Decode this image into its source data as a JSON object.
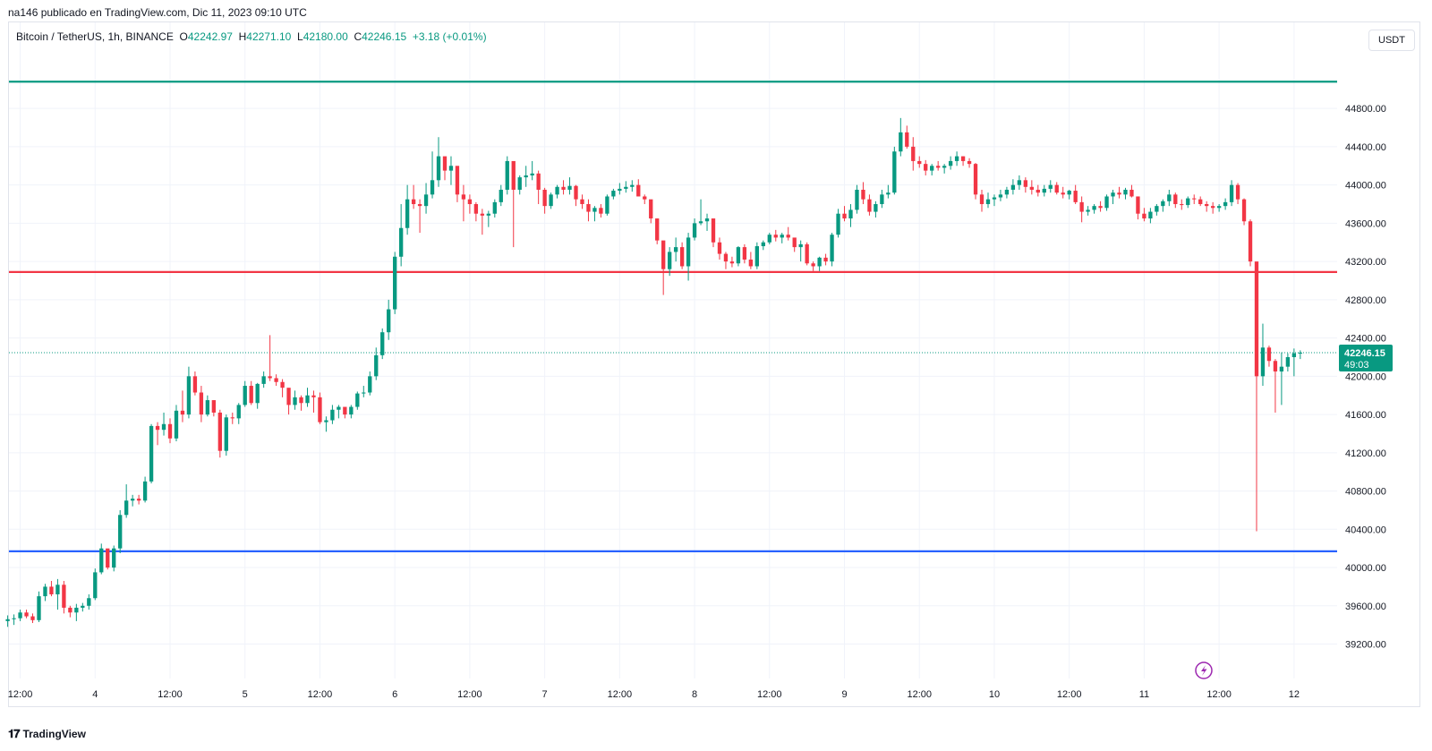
{
  "header": {
    "publisher": "na146 publicado en TradingView.com, Dic 11, 2023 09:10 UTC"
  },
  "legend": {
    "symbol": "Bitcoin / TetherUS, 1h, BINANCE",
    "o_label": "O",
    "o_value": "42242.97",
    "h_label": "H",
    "h_value": "42271.10",
    "l_label": "L",
    "l_value": "42180.00",
    "c_label": "C",
    "c_value": "42246.15",
    "change": "+3.18 (+0.01%)"
  },
  "price_axis": {
    "unit": "USDT",
    "current_price": "42246.15",
    "countdown": "49:03"
  },
  "brand": {
    "name": "TradingView"
  },
  "colors": {
    "up": "#089981",
    "down": "#f23645",
    "level_top": "#089981",
    "level_mid": "#f23645",
    "level_low": "#2962ff"
  },
  "chart_data": {
    "type": "candlestick",
    "y_ticks": [
      "44800.00",
      "44400.00",
      "44000.00",
      "43600.00",
      "43200.00",
      "42800.00",
      "42400.00",
      "42000.00",
      "41600.00",
      "41200.00",
      "40800.00",
      "40400.00",
      "40000.00",
      "39600.00",
      "39200.00"
    ],
    "x_ticks": [
      "12:00",
      "4",
      "12:00",
      "5",
      "12:00",
      "6",
      "12:00",
      "7",
      "12:00",
      "8",
      "12:00",
      "9",
      "12:00",
      "10",
      "12:00",
      "11",
      "12:00",
      "12"
    ],
    "x_tick_hours": [
      12,
      24,
      36,
      48,
      60,
      72,
      84,
      96,
      108,
      120,
      132,
      144,
      156,
      168,
      180,
      192,
      204,
      216
    ],
    "ylim": [
      38840,
      45700
    ],
    "xlim_hours": [
      10.2,
      222.9
    ],
    "horizontal_levels": [
      {
        "price": 45080,
        "role": "level_top"
      },
      {
        "price": 43090,
        "role": "level_mid"
      },
      {
        "price": 40170,
        "role": "level_low"
      }
    ],
    "last_price": 42246.15,
    "candles_start_hour": 10,
    "candles_ohlc": [
      [
        39440,
        39500,
        39380,
        39460
      ],
      [
        39460,
        39510,
        39400,
        39470
      ],
      [
        39470,
        39560,
        39440,
        39530
      ],
      [
        39530,
        39560,
        39470,
        39490
      ],
      [
        39490,
        39520,
        39420,
        39450
      ],
      [
        39450,
        39750,
        39430,
        39700
      ],
      [
        39700,
        39830,
        39650,
        39800
      ],
      [
        39800,
        39860,
        39700,
        39720
      ],
      [
        39720,
        39880,
        39560,
        39820
      ],
      [
        39820,
        39860,
        39520,
        39580
      ],
      [
        39580,
        39600,
        39480,
        39530
      ],
      [
        39530,
        39620,
        39440,
        39580
      ],
      [
        39580,
        39630,
        39540,
        39600
      ],
      [
        39600,
        39720,
        39560,
        39680
      ],
      [
        39680,
        39990,
        39660,
        39950
      ],
      [
        39950,
        40250,
        39930,
        40200
      ],
      [
        40200,
        40100,
        39980,
        40000
      ],
      [
        40000,
        40230,
        39960,
        40200
      ],
      [
        40200,
        40600,
        40150,
        40550
      ],
      [
        40550,
        40870,
        40520,
        40700
      ],
      [
        40700,
        40760,
        40640,
        40720
      ],
      [
        40720,
        40760,
        40660,
        40700
      ],
      [
        40700,
        40950,
        40680,
        40900
      ],
      [
        40900,
        41500,
        40880,
        41480
      ],
      [
        41480,
        41520,
        41280,
        41440
      ],
      [
        41440,
        41620,
        41380,
        41500
      ],
      [
        41500,
        41560,
        41300,
        41350
      ],
      [
        41350,
        41700,
        41320,
        41640
      ],
      [
        41640,
        41850,
        41520,
        41600
      ],
      [
        41600,
        42100,
        41560,
        42000
      ],
      [
        42000,
        42050,
        41800,
        41830
      ],
      [
        41830,
        41900,
        41520,
        41600
      ],
      [
        41600,
        41800,
        41580,
        41750
      ],
      [
        41750,
        41750,
        41580,
        41620
      ],
      [
        41620,
        41650,
        41150,
        41220
      ],
      [
        41220,
        41600,
        41170,
        41570
      ],
      [
        41570,
        41620,
        41500,
        41560
      ],
      [
        41560,
        41720,
        41500,
        41700
      ],
      [
        41700,
        41950,
        41680,
        41900
      ],
      [
        41900,
        41950,
        41700,
        41720
      ],
      [
        41720,
        41930,
        41660,
        41920
      ],
      [
        41920,
        42050,
        41880,
        42000
      ],
      [
        42000,
        42430,
        41950,
        41980
      ],
      [
        41980,
        42020,
        41900,
        41940
      ],
      [
        41940,
        41970,
        41780,
        41880
      ],
      [
        41880,
        41850,
        41600,
        41700
      ],
      [
        41700,
        41850,
        41650,
        41780
      ],
      [
        41780,
        41800,
        41640,
        41720
      ],
      [
        41720,
        41880,
        41680,
        41800
      ],
      [
        41800,
        41850,
        41620,
        41780
      ],
      [
        41780,
        41830,
        41500,
        41520
      ],
      [
        41520,
        41580,
        41420,
        41540
      ],
      [
        41540,
        41700,
        41500,
        41650
      ],
      [
        41650,
        41700,
        41560,
        41680
      ],
      [
        41680,
        41650,
        41560,
        41600
      ],
      [
        41600,
        41700,
        41560,
        41680
      ],
      [
        41680,
        41840,
        41650,
        41820
      ],
      [
        41820,
        41900,
        41780,
        41830
      ],
      [
        41830,
        42050,
        41800,
        42000
      ],
      [
        42000,
        42300,
        41960,
        42220
      ],
      [
        42220,
        42500,
        42180,
        42460
      ],
      [
        42460,
        42800,
        42380,
        42700
      ],
      [
        42700,
        43300,
        42650,
        43250
      ],
      [
        43250,
        43800,
        43150,
        43550
      ],
      [
        43550,
        44000,
        43480,
        43850
      ],
      [
        43850,
        44000,
        43750,
        43800
      ],
      [
        43800,
        43850,
        43500,
        43780
      ],
      [
        43780,
        44020,
        43700,
        43900
      ],
      [
        43900,
        44350,
        43860,
        44050
      ],
      [
        44050,
        44500,
        43980,
        44300
      ],
      [
        44300,
        44250,
        44050,
        44150
      ],
      [
        44150,
        44300,
        44000,
        44200
      ],
      [
        44200,
        44150,
        43820,
        43900
      ],
      [
        43900,
        44000,
        43620,
        43850
      ],
      [
        43850,
        43900,
        43700,
        43800
      ],
      [
        43800,
        43820,
        43620,
        43700
      ],
      [
        43700,
        43750,
        43480,
        43680
      ],
      [
        43680,
        43730,
        43560,
        43700
      ],
      [
        43700,
        43850,
        43660,
        43820
      ],
      [
        43820,
        44000,
        43780,
        43950
      ],
      [
        43950,
        44300,
        43900,
        44250
      ],
      [
        44250,
        44200,
        43350,
        43950
      ],
      [
        43950,
        44100,
        43900,
        44080
      ],
      [
        44080,
        44200,
        43980,
        44100
      ],
      [
        44100,
        44250,
        44050,
        44120
      ],
      [
        44120,
        44150,
        43800,
        43950
      ],
      [
        43950,
        43970,
        43700,
        43780
      ],
      [
        43780,
        43920,
        43750,
        43900
      ],
      [
        43900,
        44000,
        43860,
        43980
      ],
      [
        43980,
        44050,
        43900,
        43950
      ],
      [
        43950,
        44080,
        43900,
        43990
      ],
      [
        43990,
        44000,
        43780,
        43850
      ],
      [
        43850,
        43900,
        43750,
        43800
      ],
      [
        43800,
        43850,
        43620,
        43720
      ],
      [
        43720,
        43780,
        43620,
        43760
      ],
      [
        43760,
        43800,
        43660,
        43700
      ],
      [
        43700,
        43900,
        43680,
        43880
      ],
      [
        43880,
        43960,
        43850,
        43940
      ],
      [
        43940,
        44020,
        43900,
        43960
      ],
      [
        43960,
        44040,
        43920,
        43980
      ],
      [
        43980,
        44050,
        43930,
        44000
      ],
      [
        44000,
        44060,
        43900,
        43880
      ],
      [
        43880,
        43900,
        43800,
        43850
      ],
      [
        43850,
        43830,
        43600,
        43650
      ],
      [
        43650,
        43650,
        43380,
        43420
      ],
      [
        43420,
        43400,
        42850,
        43120
      ],
      [
        43120,
        43350,
        43050,
        43300
      ],
      [
        43300,
        43450,
        43200,
        43350
      ],
      [
        43350,
        43400,
        43120,
        43150
      ],
      [
        43150,
        43500,
        43000,
        43450
      ],
      [
        43450,
        43650,
        43420,
        43600
      ],
      [
        43600,
        43850,
        43580,
        43620
      ],
      [
        43620,
        43700,
        43520,
        43650
      ],
      [
        43650,
        43600,
        43350,
        43400
      ],
      [
        43400,
        43450,
        43220,
        43280
      ],
      [
        43280,
        43300,
        43120,
        43200
      ],
      [
        43200,
        43250,
        43140,
        43180
      ],
      [
        43180,
        43360,
        43150,
        43350
      ],
      [
        43350,
        43380,
        43180,
        43220
      ],
      [
        43220,
        43300,
        43120,
        43150
      ],
      [
        43150,
        43400,
        43120,
        43360
      ],
      [
        43360,
        43420,
        43320,
        43400
      ],
      [
        43400,
        43500,
        43380,
        43480
      ],
      [
        43480,
        43530,
        43410,
        43450
      ],
      [
        43450,
        43500,
        43390,
        43480
      ],
      [
        43480,
        43560,
        43420,
        43450
      ],
      [
        43450,
        43430,
        43300,
        43350
      ],
      [
        43350,
        43420,
        43200,
        43380
      ],
      [
        43380,
        43400,
        43160,
        43180
      ],
      [
        43180,
        43200,
        43100,
        43150
      ],
      [
        43150,
        43250,
        43100,
        43240
      ],
      [
        43240,
        43280,
        43160,
        43200
      ],
      [
        43200,
        43500,
        43150,
        43480
      ],
      [
        43480,
        43750,
        43450,
        43700
      ],
      [
        43700,
        43780,
        43620,
        43650
      ],
      [
        43650,
        43800,
        43560,
        43740
      ],
      [
        43740,
        44000,
        43700,
        43950
      ],
      [
        43950,
        44030,
        43800,
        43850
      ],
      [
        43850,
        43900,
        43680,
        43720
      ],
      [
        43720,
        43830,
        43660,
        43800
      ],
      [
        43800,
        43950,
        43760,
        43900
      ],
      [
        43900,
        44000,
        43860,
        43920
      ],
      [
        43920,
        44400,
        43900,
        44350
      ],
      [
        44350,
        44700,
        44300,
        44550
      ],
      [
        44550,
        44620,
        44380,
        44400
      ],
      [
        44400,
        44500,
        44150,
        44250
      ],
      [
        44250,
        44300,
        44180,
        44220
      ],
      [
        44220,
        44260,
        44100,
        44150
      ],
      [
        44150,
        44220,
        44100,
        44200
      ],
      [
        44200,
        44250,
        44150,
        44180
      ],
      [
        44180,
        44220,
        44120,
        44200
      ],
      [
        44200,
        44300,
        44160,
        44250
      ],
      [
        44250,
        44350,
        44200,
        44300
      ],
      [
        44300,
        44300,
        44200,
        44250
      ],
      [
        44250,
        44280,
        44180,
        44220
      ],
      [
        44220,
        44230,
        43850,
        43900
      ],
      [
        43900,
        43950,
        43720,
        43800
      ],
      [
        43800,
        43920,
        43760,
        43850
      ],
      [
        43850,
        43900,
        43780,
        43870
      ],
      [
        43870,
        43950,
        43830,
        43900
      ],
      [
        43900,
        43980,
        43860,
        43950
      ],
      [
        43950,
        44060,
        43900,
        44000
      ],
      [
        44000,
        44100,
        43950,
        44050
      ],
      [
        44050,
        44080,
        43920,
        43980
      ],
      [
        43980,
        44050,
        43900,
        43950
      ],
      [
        43950,
        44000,
        43880,
        43920
      ],
      [
        43920,
        44000,
        43880,
        43960
      ],
      [
        43960,
        44050,
        43920,
        44000
      ],
      [
        44000,
        44030,
        43900,
        43920
      ],
      [
        43920,
        43980,
        43860,
        43900
      ],
      [
        43900,
        43950,
        43850,
        43940
      ],
      [
        43940,
        44000,
        43800,
        43820
      ],
      [
        43820,
        43880,
        43610,
        43720
      ],
      [
        43720,
        43780,
        43680,
        43740
      ],
      [
        43740,
        43800,
        43700,
        43780
      ],
      [
        43780,
        43830,
        43720,
        43760
      ],
      [
        43760,
        43900,
        43730,
        43880
      ],
      [
        43880,
        43950,
        43800,
        43920
      ],
      [
        43920,
        43980,
        43860,
        43900
      ],
      [
        43900,
        43970,
        43850,
        43950
      ],
      [
        43950,
        44000,
        43870,
        43880
      ],
      [
        43880,
        43880,
        43640,
        43700
      ],
      [
        43700,
        43760,
        43620,
        43650
      ],
      [
        43650,
        43760,
        43600,
        43720
      ],
      [
        43720,
        43800,
        43680,
        43780
      ],
      [
        43780,
        43850,
        43720,
        43830
      ],
      [
        43830,
        43950,
        43780,
        43900
      ],
      [
        43900,
        43920,
        43760,
        43800
      ],
      [
        43800,
        43850,
        43740,
        43790
      ],
      [
        43790,
        43880,
        43760,
        43860
      ],
      [
        43860,
        43900,
        43800,
        43850
      ],
      [
        43850,
        43880,
        43780,
        43800
      ],
      [
        43800,
        43830,
        43720,
        43780
      ],
      [
        43780,
        43820,
        43700,
        43760
      ],
      [
        43760,
        43800,
        43720,
        43780
      ],
      [
        43780,
        43860,
        43740,
        43820
      ],
      [
        43820,
        44050,
        43780,
        44000
      ],
      [
        44000,
        44020,
        43800,
        43850
      ],
      [
        43850,
        43860,
        43580,
        43620
      ],
      [
        43620,
        43640,
        43150,
        43200
      ],
      [
        43200,
        43180,
        40380,
        42000
      ],
      [
        42000,
        42550,
        41900,
        42300
      ],
      [
        42300,
        42320,
        42100,
        42160
      ],
      [
        42160,
        42180,
        41620,
        42050
      ],
      [
        42050,
        42250,
        41700,
        42100
      ],
      [
        42100,
        42240,
        42050,
        42200
      ],
      [
        42200,
        42290,
        42000,
        42240
      ],
      [
        42242.97,
        42271.1,
        42180.0,
        42246.15
      ]
    ]
  }
}
